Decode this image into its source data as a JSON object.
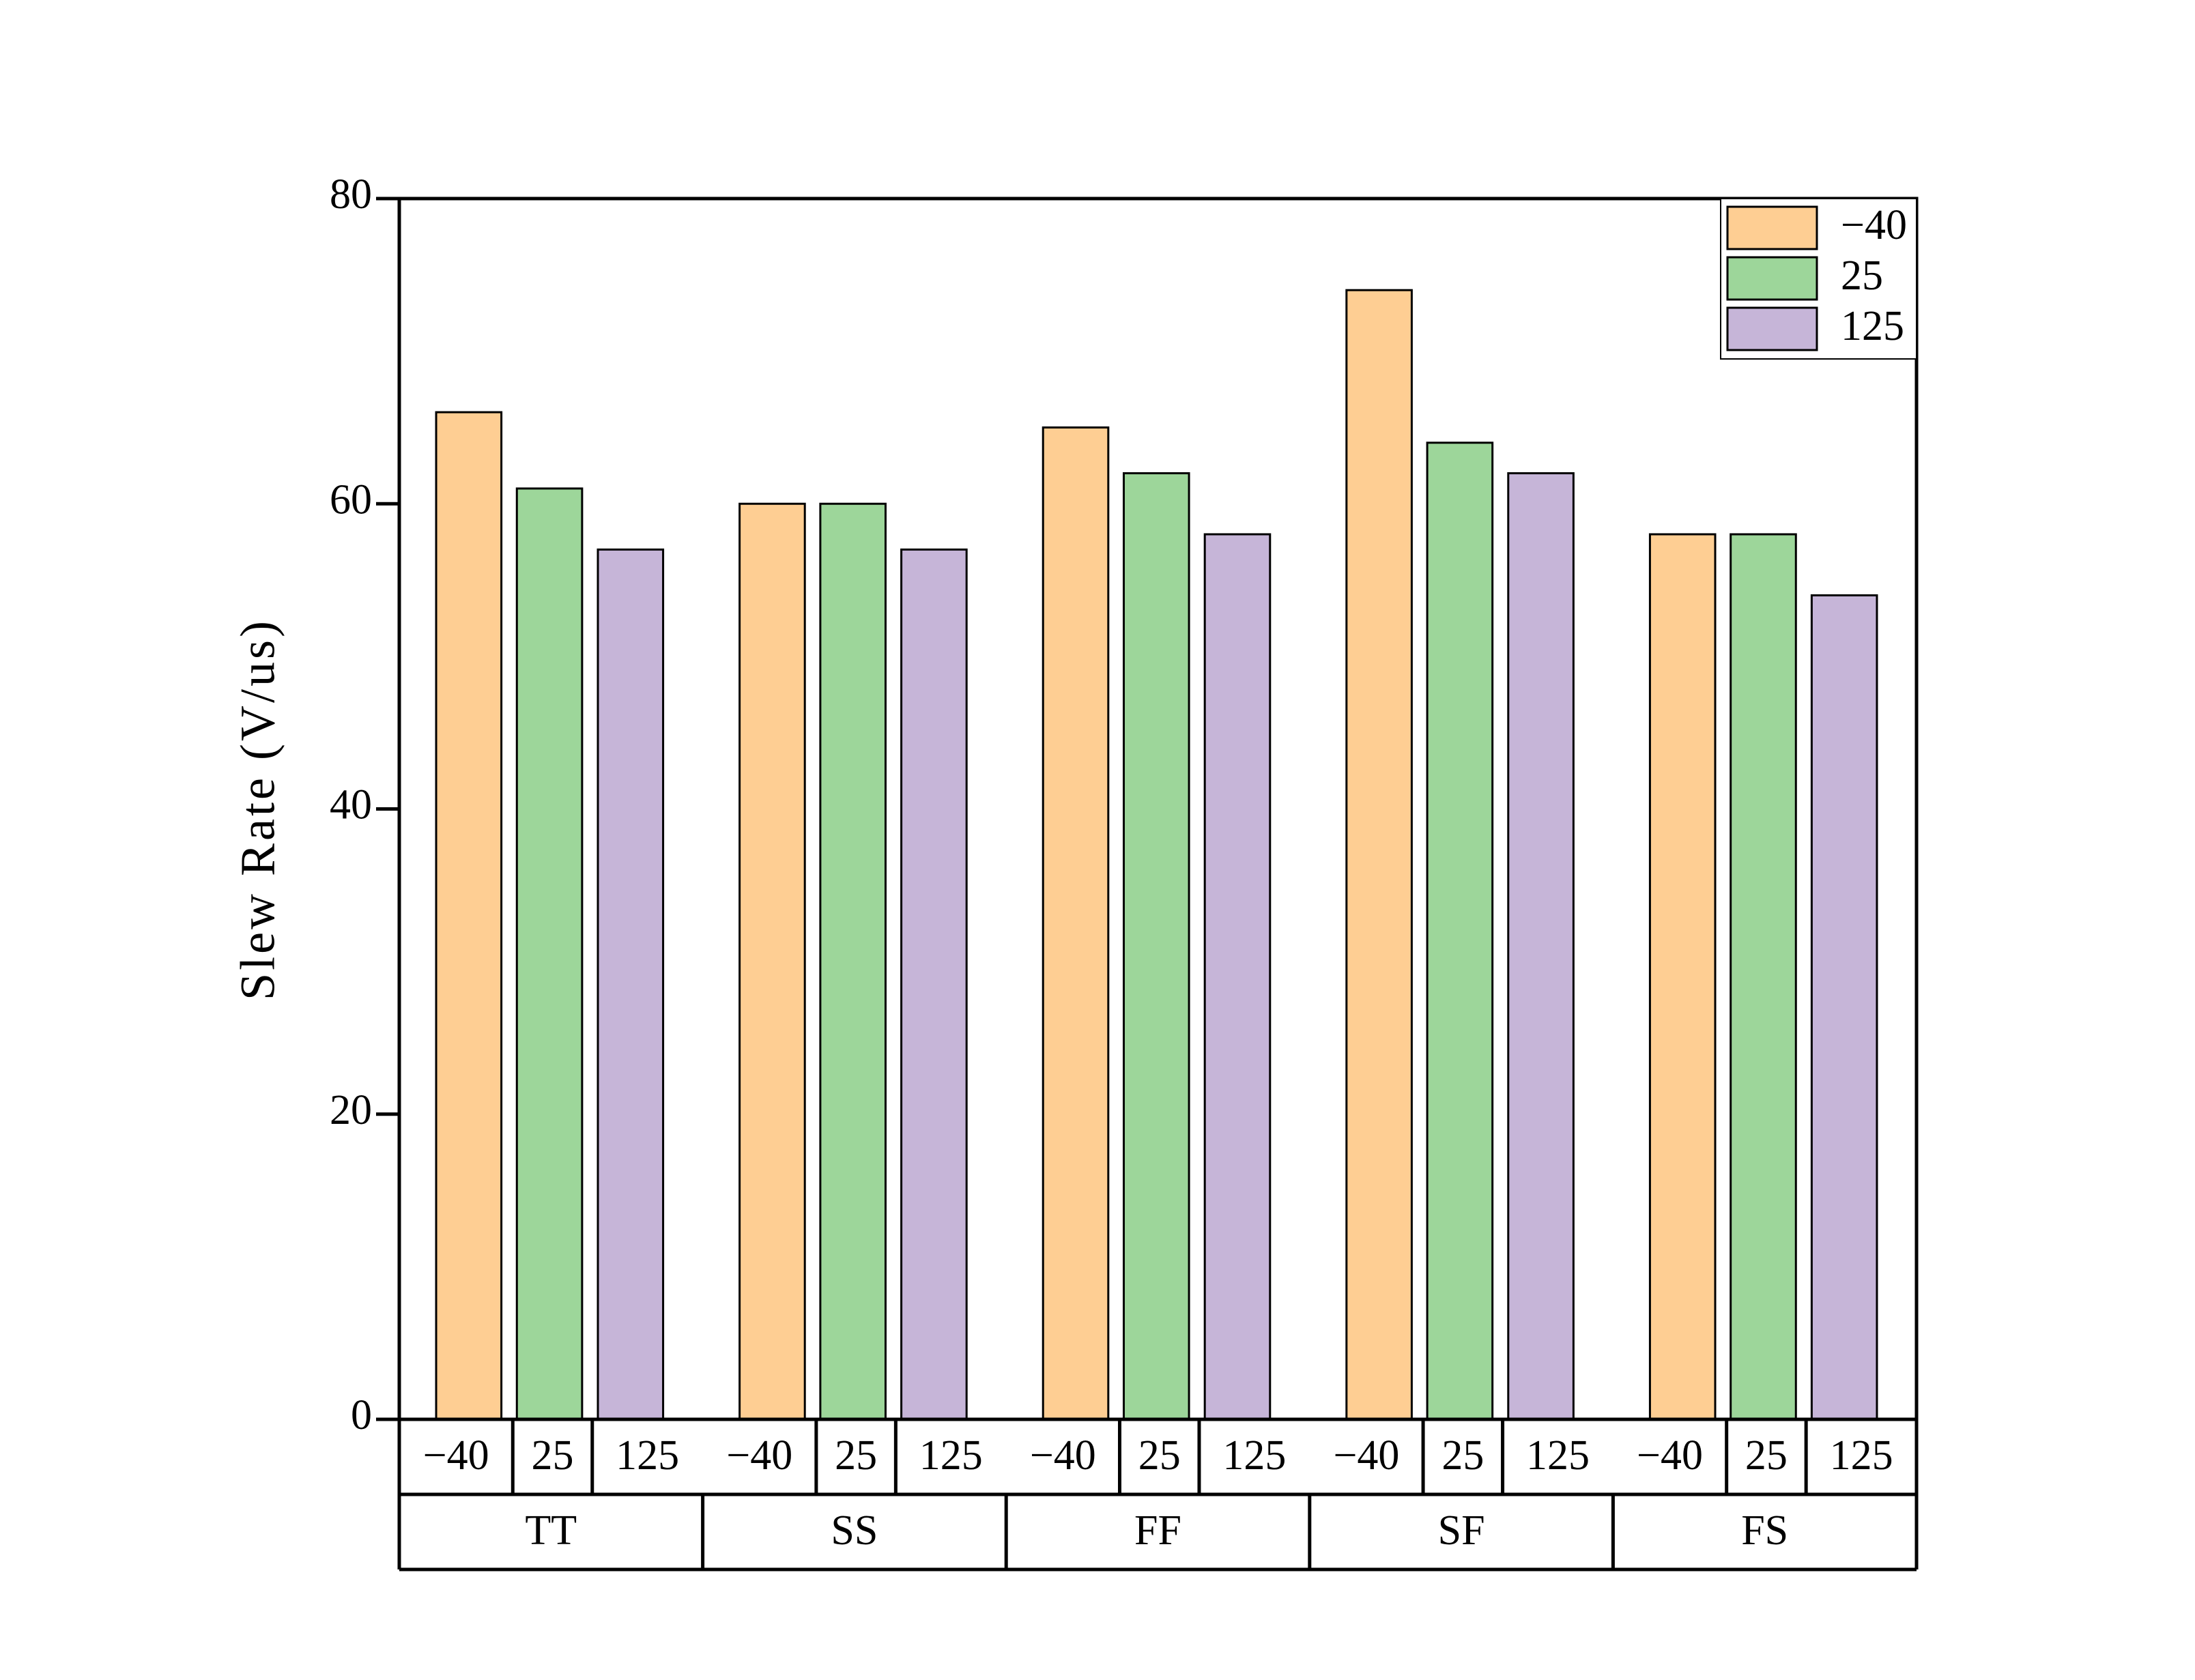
{
  "chart_data": {
    "type": "bar",
    "y_label": "Slew Rate (V/us)",
    "categories": [
      "TT",
      "SS",
      "FF",
      "SF",
      "FS"
    ],
    "series": [
      {
        "name": "−40",
        "color": "#fece93",
        "values": [
          66,
          60,
          65,
          74,
          58
        ]
      },
      {
        "name": "25",
        "color": "#9dd69a",
        "values": [
          61,
          60,
          62,
          64,
          58
        ]
      },
      {
        "name": "125",
        "color": "#c6b5d8",
        "values": [
          57,
          57,
          58,
          62,
          54
        ]
      }
    ],
    "ylim": [
      0,
      80
    ],
    "yticks": [
      0,
      20,
      40,
      60,
      80
    ],
    "legend": "upper right",
    "grid": false
  }
}
